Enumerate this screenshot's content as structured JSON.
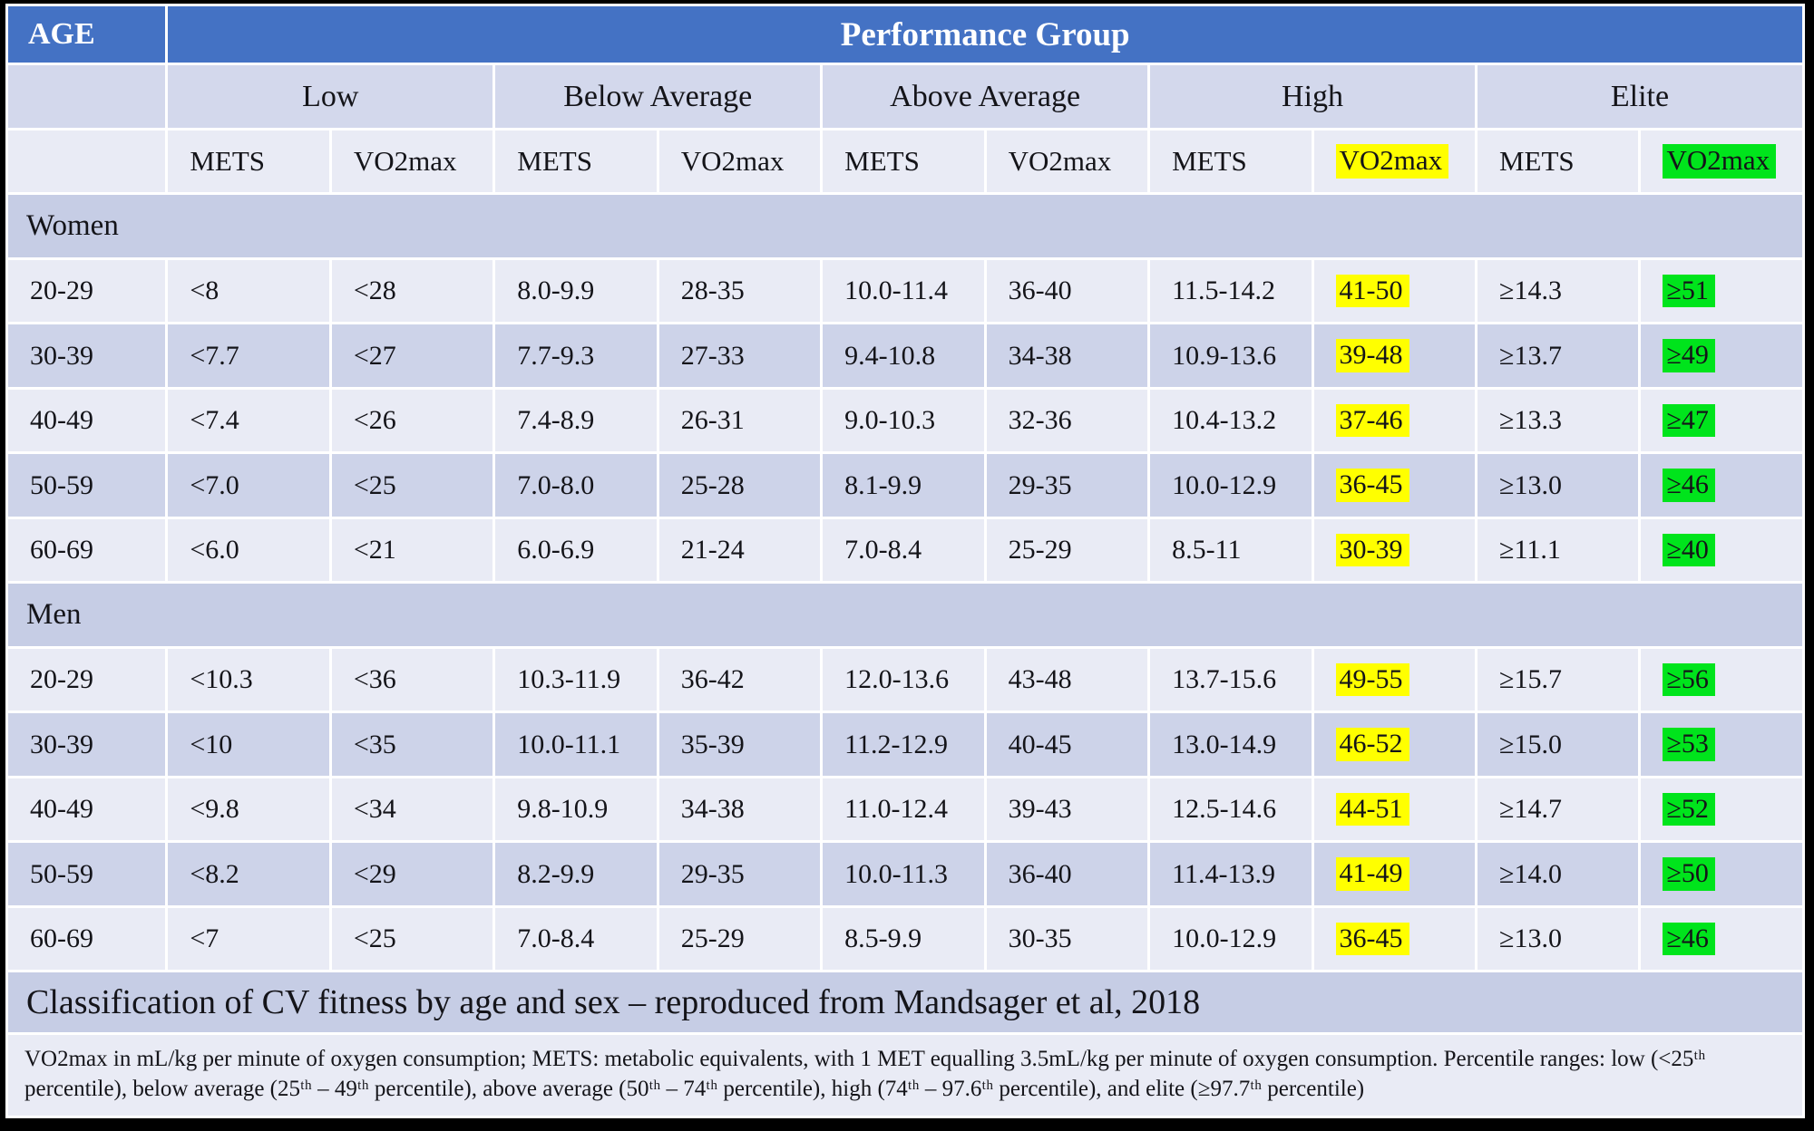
{
  "header": {
    "age_label": "AGE",
    "performance_group_label": "Performance Group"
  },
  "groups": [
    {
      "label": "Low",
      "mets_label": "METS",
      "vo2_label": "VO2max",
      "vo2_highlight": "none"
    },
    {
      "label": "Below Average",
      "mets_label": "METS",
      "vo2_label": "VO2max",
      "vo2_highlight": "none"
    },
    {
      "label": "Above Average",
      "mets_label": "METS",
      "vo2_label": "VO2max",
      "vo2_highlight": "none"
    },
    {
      "label": "High",
      "mets_label": "METS",
      "vo2_label": "VO2max",
      "vo2_highlight": "yellow"
    },
    {
      "label": "Elite",
      "mets_label": "METS",
      "vo2_label": "VO2max",
      "vo2_highlight": "green"
    }
  ],
  "highlight_columns": {
    "yellow": 7,
    "green": 9
  },
  "colors": {
    "header_blue": "#4472c4",
    "row_light": "#e9ebf5",
    "row_dark": "#cdd3e9",
    "section_band": "#c6cde5",
    "group_band": "#d3d8ec",
    "highlight_yellow": "#ffff00",
    "highlight_green": "#00e41c"
  },
  "sections": [
    {
      "label": "Women",
      "rows": [
        {
          "age": "20-29",
          "cells": [
            "<8",
            "<28",
            "8.0-9.9",
            "28-35",
            "10.0-11.4",
            "36-40",
            "11.5-14.2",
            "41-50",
            "≥14.3",
            "≥51"
          ]
        },
        {
          "age": "30-39",
          "cells": [
            "<7.7",
            "<27",
            "7.7-9.3",
            "27-33",
            "9.4-10.8",
            "34-38",
            "10.9-13.6",
            "39-48",
            "≥13.7",
            "≥49"
          ]
        },
        {
          "age": "40-49",
          "cells": [
            "<7.4",
            "<26",
            "7.4-8.9",
            "26-31",
            "9.0-10.3",
            "32-36",
            "10.4-13.2",
            "37-46",
            "≥13.3",
            "≥47"
          ]
        },
        {
          "age": "50-59",
          "cells": [
            "<7.0",
            "<25",
            "7.0-8.0",
            "25-28",
            "8.1-9.9",
            "29-35",
            "10.0-12.9",
            "36-45",
            "≥13.0",
            "≥46"
          ]
        },
        {
          "age": "60-69",
          "cells": [
            "<6.0",
            "<21",
            "6.0-6.9",
            "21-24",
            "7.0-8.4",
            "25-29",
            "8.5-11",
            "30-39",
            "≥11.1",
            "≥40"
          ]
        }
      ]
    },
    {
      "label": "Men",
      "rows": [
        {
          "age": "20-29",
          "cells": [
            "<10.3",
            "<36",
            "10.3-11.9",
            "36-42",
            "12.0-13.6",
            "43-48",
            "13.7-15.6",
            "49-55",
            "≥15.7",
            "≥56"
          ]
        },
        {
          "age": "30-39",
          "cells": [
            "<10",
            "<35",
            "10.0-11.1",
            "35-39",
            "11.2-12.9",
            "40-45",
            "13.0-14.9",
            "46-52",
            "≥15.0",
            "≥53"
          ]
        },
        {
          "age": "40-49",
          "cells": [
            "<9.8",
            "<34",
            "9.8-10.9",
            "34-38",
            "11.0-12.4",
            "39-43",
            "12.5-14.6",
            "44-51",
            "≥14.7",
            "≥52"
          ]
        },
        {
          "age": "50-59",
          "cells": [
            "<8.2",
            "<29",
            "8.2-9.9",
            "29-35",
            "10.0-11.3",
            "36-40",
            "11.4-13.9",
            "41-49",
            "≥14.0",
            "≥50"
          ]
        },
        {
          "age": "60-69",
          "cells": [
            "<7",
            "<25",
            "7.0-8.4",
            "25-29",
            "8.5-9.9",
            "30-35",
            "10.0-12.9",
            "36-45",
            "≥13.0",
            "≥46"
          ]
        }
      ]
    }
  ],
  "caption": "Classification of CV fitness by age and sex – reproduced from Mandsager et al, 2018",
  "footnote": "VO2max in mL/kg per minute of oxygen consumption; METS: metabolic equivalents, with 1 MET equalling 3.5mL/kg per minute of oxygen consumption. Percentile ranges: low (<25ᵗʰ percentile), below average (25ᵗʰ – 49ᵗʰ percentile), above average (50ᵗʰ – 74ᵗʰ percentile), high (74ᵗʰ – 97.6ᵗʰ percentile), and elite (≥97.7ᵗʰ percentile)"
}
